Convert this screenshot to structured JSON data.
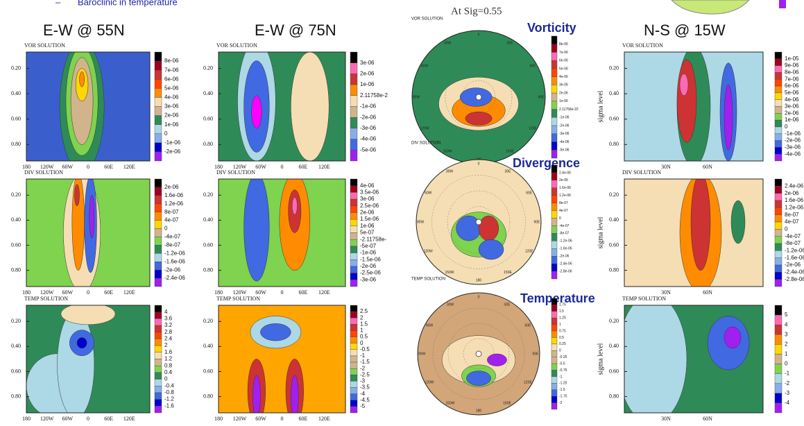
{
  "header": {
    "bullet": "Baroclinic in temperature",
    "subtitle": "At Sig=0.55"
  },
  "column_titles": [
    "E-W @ 55N",
    "E-W @ 75N",
    "N-S @ 15W"
  ],
  "row_titles": [
    "Vorticity",
    "Divergence",
    "Temperature"
  ],
  "sigma_ticks": [
    "0.20",
    "0.40",
    "0.60",
    "0.80"
  ],
  "lon_ticks": [
    "180",
    "120W",
    "60W",
    "0",
    "60E",
    "120E"
  ],
  "lat_ticks": [
    "30N",
    "60N"
  ],
  "y_axis_label": "sigma level",
  "polar_labels": [
    "150W",
    "120W",
    "90W",
    "60W",
    "30W",
    "0",
    "30E",
    "60E",
    "90E",
    "120E",
    "150E",
    "180"
  ],
  "panels": [
    [
      {
        "solution": "VOR SOLUTION",
        "colorbar": [
          "8e-06",
          "7e-06",
          "6e-06",
          "5e-06",
          "4e-06",
          "3e-06",
          "2e-06",
          "1e-06",
          "0",
          "-1e-06",
          "-2e-06"
        ]
      },
      {
        "solution": "VOR SOLUTION",
        "colorbar": [
          "3e-06",
          "2e-06",
          "1e-06",
          "2.11758e-2",
          "-1e-06",
          "-2e-06",
          "-3e-06",
          "-4e-06",
          "-5e-06"
        ]
      },
      {
        "solution": "VOR SOLUTION",
        "colorbar": [
          "8e-06",
          "7e-06",
          "6e-06",
          "5e-06",
          "4e-06",
          "3e-06",
          "2e-06",
          "1e-06",
          "2.11758e-22",
          "-1e-06",
          "-2e-06",
          "-3e-06",
          "-4e-06",
          "-5e-06"
        ]
      },
      {
        "solution": "VOR SOLUTION",
        "colorbar": [
          "1e-05",
          "9e-06",
          "8e-06",
          "7e-06",
          "6e-06",
          "5e-06",
          "4e-06",
          "3e-06",
          "2e-06",
          "1e-06",
          "0",
          "-1e-06",
          "-2e-06",
          "-3e-06",
          "-4e-06"
        ]
      }
    ],
    [
      {
        "solution": "DIV SOLUTION",
        "colorbar": [
          "2e-06",
          "1.6e-06",
          "1.2e-06",
          "8e-07",
          "4e-07",
          "0",
          "-4e-07",
          "-8e-07",
          "-1.2e-06",
          "-1.6e-06",
          "-2e-06",
          "-2.4e-06"
        ]
      },
      {
        "solution": "DIV SOLUTION",
        "colorbar": [
          "4e-06",
          "3.5e-06",
          "3e-06",
          "2.5e-06",
          "2e-06",
          "1.5e-06",
          "1e-06",
          "5e-07",
          "-2.11758e-",
          "-5e-07",
          "-1e-06",
          "-1.5e-06",
          "-2e-06",
          "-2.5e-06",
          "-3e-06"
        ]
      },
      {
        "solution": "DIV SOLUTION",
        "colorbar": [
          "2.4e-06",
          "2e-06",
          "1.6e-06",
          "1.2e-06",
          "8e-07",
          "4e-07",
          "0",
          "-4e-07",
          "-8e-07",
          "-1.2e-06",
          "-1.6e-06",
          "-2e-06",
          "-2.4e-06",
          "-2.8e-06"
        ]
      },
      {
        "solution": "DIV SOLUTION",
        "colorbar": [
          "2.4e-06",
          "2e-06",
          "1.6e-06",
          "1.2e-06",
          "8e-07",
          "4e-07",
          "0",
          "-4e-07",
          "-8e-07",
          "-1.2e-06",
          "-1.6e-06",
          "-2e-06",
          "-2.4e-06",
          "-2.8e-06"
        ]
      }
    ],
    [
      {
        "solution": "TEMP SOLUTION",
        "colorbar": [
          "4",
          "3.6",
          "3.2",
          "2.8",
          "2.4",
          "2",
          "1.6",
          "1.2",
          "0.8",
          "0.4",
          "0",
          "-0.4",
          "-0.8",
          "-1.2",
          "-1.6"
        ]
      },
      {
        "solution": "TEMP SOLUTION",
        "colorbar": [
          "2.5",
          "2",
          "1.5",
          "1",
          "0.5",
          "0",
          "-0.5",
          "-1",
          "-1.5",
          "-2",
          "-2.5",
          "-3",
          "-3.5",
          "-4",
          "-4.5",
          "-5"
        ]
      },
      {
        "solution": "TEMP SOLUTION",
        "colorbar": [
          "1.75",
          "1.5",
          "1.25",
          "1",
          "0.75",
          "0.5",
          "0.25",
          "0",
          "-0.25",
          "-0.5",
          "-0.75",
          "-1",
          "-1.25",
          "-1.5",
          "-1.75",
          "-2"
        ]
      },
      {
        "solution": "TEMP SOLUTION",
        "colorbar": [
          "5",
          "4",
          "3",
          "2",
          "1",
          "0",
          "-1",
          "-2",
          "-3",
          "-4"
        ]
      }
    ]
  ]
}
